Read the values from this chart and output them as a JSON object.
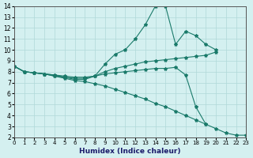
{
  "xlabel": "Humidex (Indice chaleur)",
  "ylabel": "",
  "bg_color": "#d4f0f0",
  "grid_color": "#b0d8d8",
  "line_color": "#1a7a6a",
  "xlim": [
    0,
    23
  ],
  "ylim": [
    2,
    14
  ],
  "xticks": [
    0,
    1,
    2,
    3,
    4,
    5,
    6,
    7,
    8,
    9,
    10,
    11,
    12,
    13,
    14,
    15,
    16,
    17,
    18,
    19,
    20,
    21,
    22,
    23
  ],
  "yticks": [
    2,
    3,
    4,
    5,
    6,
    7,
    8,
    9,
    10,
    11,
    12,
    13,
    14
  ],
  "series": {
    "line1": {
      "x": [
        0,
        1,
        2,
        3,
        4,
        5,
        6,
        7,
        8,
        9,
        10,
        11,
        12,
        13,
        14,
        15,
        16,
        17,
        18,
        19,
        20,
        21,
        22,
        23
      ],
      "y": [
        8.5,
        8.0,
        7.9,
        7.8,
        7.7,
        7.5,
        7.3,
        7.3,
        7.6,
        8.7,
        9.6,
        10.0,
        11.0,
        12.3,
        14.0,
        14.0,
        10.5,
        11.7,
        11.3,
        10.5,
        10.0,
        null,
        null,
        null
      ]
    },
    "line2": {
      "x": [
        0,
        1,
        2,
        3,
        4,
        5,
        6,
        7,
        8,
        9,
        10,
        11,
        12,
        13,
        14,
        15,
        16,
        17,
        18,
        19,
        20,
        21,
        22,
        23
      ],
      "y": [
        8.5,
        8.0,
        7.9,
        7.8,
        7.7,
        7.6,
        7.5,
        7.5,
        7.6,
        8.0,
        8.3,
        8.5,
        8.7,
        8.9,
        9.0,
        9.1,
        9.2,
        9.3,
        9.4,
        9.5,
        9.8,
        null,
        null,
        null
      ]
    },
    "line3": {
      "x": [
        0,
        1,
        2,
        3,
        4,
        5,
        6,
        7,
        8,
        9,
        10,
        11,
        12,
        13,
        14,
        15,
        16,
        17,
        18,
        19,
        20,
        21,
        22,
        23
      ],
      "y": [
        8.5,
        8.0,
        7.9,
        7.8,
        7.6,
        7.5,
        7.4,
        7.4,
        7.6,
        7.8,
        7.9,
        8.0,
        8.1,
        8.2,
        8.3,
        8.3,
        8.4,
        7.7,
        4.8,
        3.2,
        null,
        null,
        null,
        null
      ]
    },
    "line4": {
      "x": [
        0,
        1,
        2,
        3,
        4,
        5,
        6,
        7,
        8,
        9,
        10,
        11,
        12,
        13,
        14,
        15,
        16,
        17,
        18,
        19,
        20,
        21,
        22,
        23
      ],
      "y": [
        8.5,
        8.0,
        7.9,
        7.8,
        7.6,
        7.4,
        7.2,
        7.1,
        6.9,
        6.7,
        6.4,
        6.1,
        5.8,
        5.5,
        5.1,
        4.8,
        4.4,
        4.0,
        3.6,
        3.2,
        2.8,
        2.4,
        2.2,
        2.2
      ]
    }
  }
}
